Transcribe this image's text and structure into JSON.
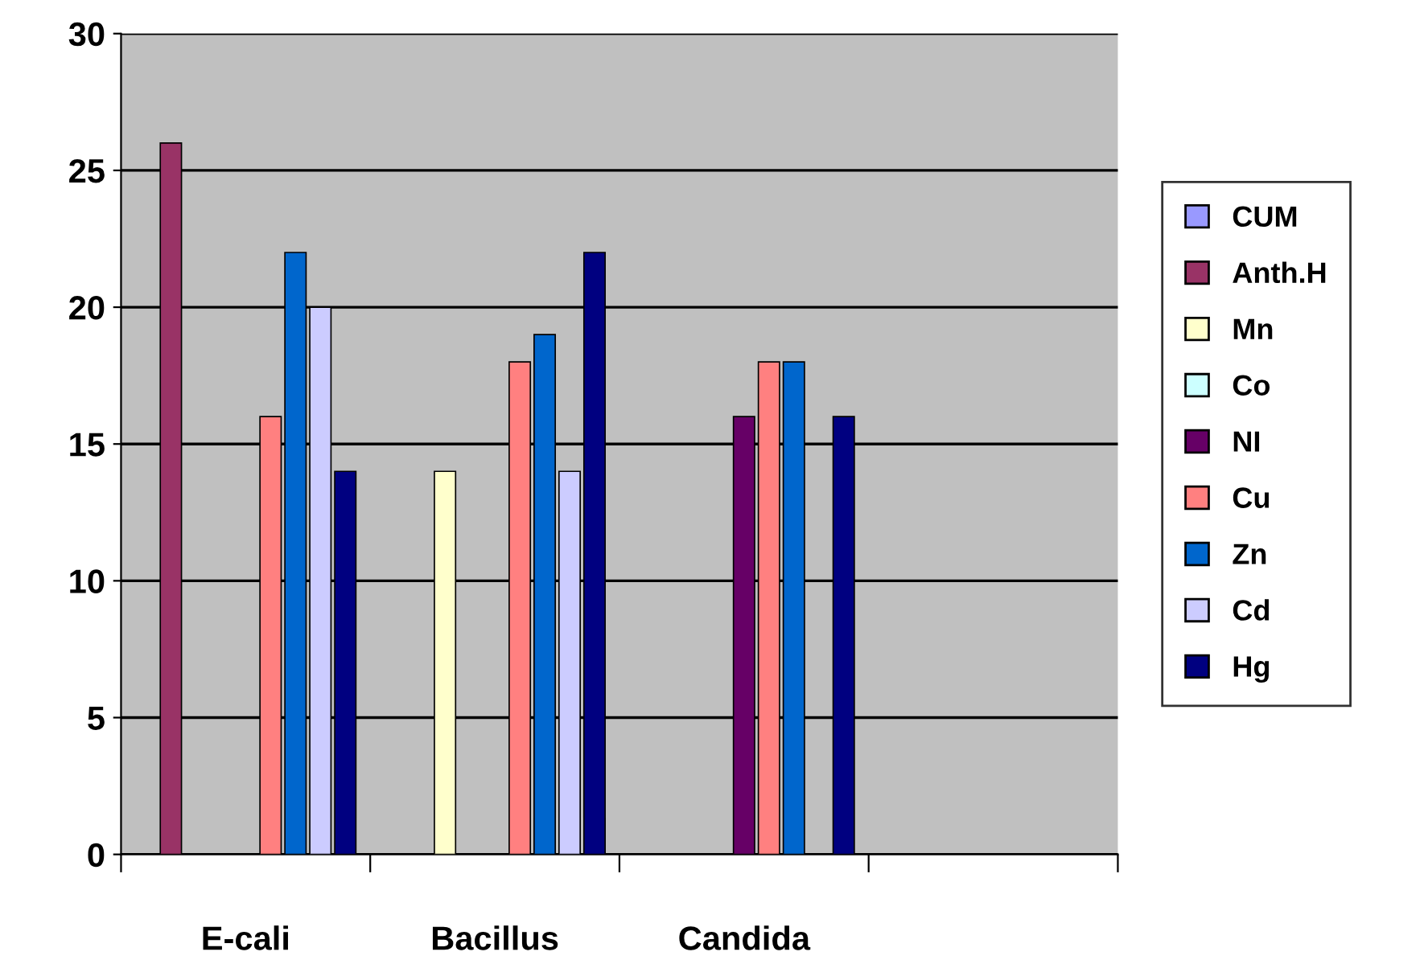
{
  "chart_data": {
    "type": "bar",
    "categories": [
      "E-cali",
      "Bacillus",
      "Candida",
      null
    ],
    "series": [
      {
        "name": "CUM",
        "color": "#9999ff",
        "values": [
          0,
          0,
          0,
          null
        ]
      },
      {
        "name": "Anth.H",
        "color": "#993366",
        "values": [
          26,
          0,
          0,
          null
        ]
      },
      {
        "name": "Mn",
        "color": "#ffffcc",
        "values": [
          0,
          14,
          0,
          null
        ]
      },
      {
        "name": "Co",
        "color": "#ccffff",
        "values": [
          0,
          0,
          0,
          null
        ]
      },
      {
        "name": "NI",
        "color": "#660066",
        "values": [
          0,
          0,
          16,
          null
        ]
      },
      {
        "name": "Cu",
        "color": "#ff8080",
        "values": [
          16,
          18,
          18,
          null
        ]
      },
      {
        "name": "Zn",
        "color": "#0066cc",
        "values": [
          22,
          19,
          18,
          null
        ]
      },
      {
        "name": "Cd",
        "color": "#ccccff",
        "values": [
          20,
          14,
          0,
          null
        ]
      },
      {
        "name": "Hg",
        "color": "#000080",
        "values": [
          14,
          22,
          16,
          null
        ]
      }
    ],
    "ylim": [
      0,
      30
    ],
    "yticks": [
      0,
      5,
      10,
      15,
      20,
      25,
      30
    ],
    "grid": "y",
    "legend": "right"
  }
}
